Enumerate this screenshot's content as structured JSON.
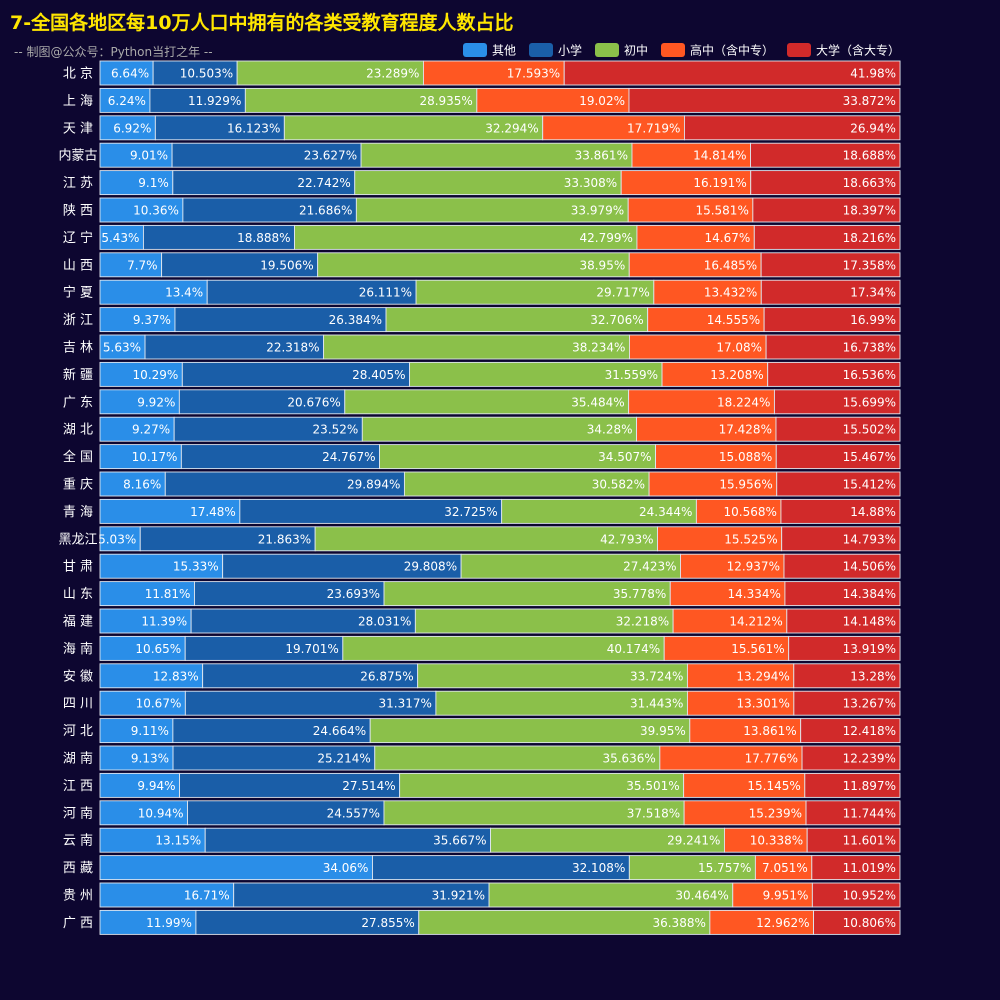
{
  "chart_data": {
    "type": "bar",
    "orientation": "horizontal",
    "stacked": true,
    "title": "7-全国各地区每10万人口中拥有的各类受教育程度人数占比",
    "subtitle": "-- 制图@公众号：Python当打之年 --",
    "legend_position": "top-right",
    "xlim": [
      0,
      100
    ],
    "unit": "%",
    "categories": [
      "北 京",
      "上 海",
      "天 津",
      "内蒙古",
      "江 苏",
      "陕 西",
      "辽 宁",
      "山 西",
      "宁 夏",
      "浙 江",
      "吉 林",
      "新 疆",
      "广 东",
      "湖 北",
      "全 国",
      "重 庆",
      "青 海",
      "黑龙江",
      "甘 肃",
      "山 东",
      "福 建",
      "海 南",
      "安 徽",
      "四 川",
      "河 北",
      "湖 南",
      "江 西",
      "河 南",
      "云 南",
      "西 藏",
      "贵 州",
      "广 西"
    ],
    "series": [
      {
        "name": "其他",
        "color": "#2a8ee8",
        "values": [
          6.64,
          6.24,
          6.92,
          9.01,
          9.1,
          10.36,
          5.43,
          7.7,
          13.4,
          9.37,
          5.63,
          10.29,
          9.92,
          9.27,
          10.17,
          8.16,
          17.48,
          5.03,
          15.33,
          11.81,
          11.39,
          10.65,
          12.83,
          10.67,
          9.11,
          9.13,
          9.94,
          10.94,
          13.15,
          34.06,
          16.71,
          11.99
        ]
      },
      {
        "name": "小学",
        "color": "#1a5ea8",
        "values": [
          10.503,
          11.929,
          16.123,
          23.627,
          22.742,
          21.686,
          18.888,
          19.506,
          26.111,
          26.384,
          22.318,
          28.405,
          20.676,
          23.52,
          24.767,
          29.894,
          32.725,
          21.863,
          29.808,
          23.693,
          28.031,
          19.701,
          26.875,
          31.317,
          24.664,
          25.214,
          27.514,
          24.557,
          35.667,
          32.108,
          31.921,
          27.855
        ]
      },
      {
        "name": "初中",
        "color": "#8bc04a",
        "values": [
          23.289,
          28.935,
          32.294,
          33.861,
          33.308,
          33.979,
          42.799,
          38.95,
          29.717,
          32.706,
          38.234,
          31.559,
          35.484,
          34.28,
          34.507,
          30.582,
          24.344,
          42.793,
          27.423,
          35.778,
          32.218,
          40.174,
          33.724,
          31.443,
          39.95,
          35.636,
          35.501,
          37.518,
          29.241,
          15.757,
          30.464,
          36.388
        ]
      },
      {
        "name": "高中（含中专）",
        "color": "#ff5722",
        "values": [
          17.593,
          19.02,
          17.719,
          14.814,
          16.191,
          15.581,
          14.67,
          16.485,
          13.432,
          14.555,
          17.08,
          13.208,
          18.224,
          17.428,
          15.088,
          15.956,
          10.568,
          15.525,
          12.937,
          14.334,
          14.212,
          15.561,
          13.294,
          13.301,
          13.861,
          17.776,
          15.145,
          15.239,
          10.338,
          7.051,
          9.951,
          12.962
        ]
      },
      {
        "name": "大学（含大专）",
        "color": "#d12a2a",
        "values": [
          41.98,
          33.872,
          26.94,
          18.688,
          18.663,
          18.397,
          18.216,
          17.358,
          17.34,
          16.99,
          16.738,
          16.536,
          15.699,
          15.502,
          15.467,
          15.412,
          14.88,
          14.793,
          14.506,
          14.384,
          14.148,
          13.919,
          13.28,
          13.267,
          12.418,
          12.239,
          11.897,
          11.744,
          11.601,
          11.019,
          10.952,
          10.806
        ]
      }
    ]
  }
}
